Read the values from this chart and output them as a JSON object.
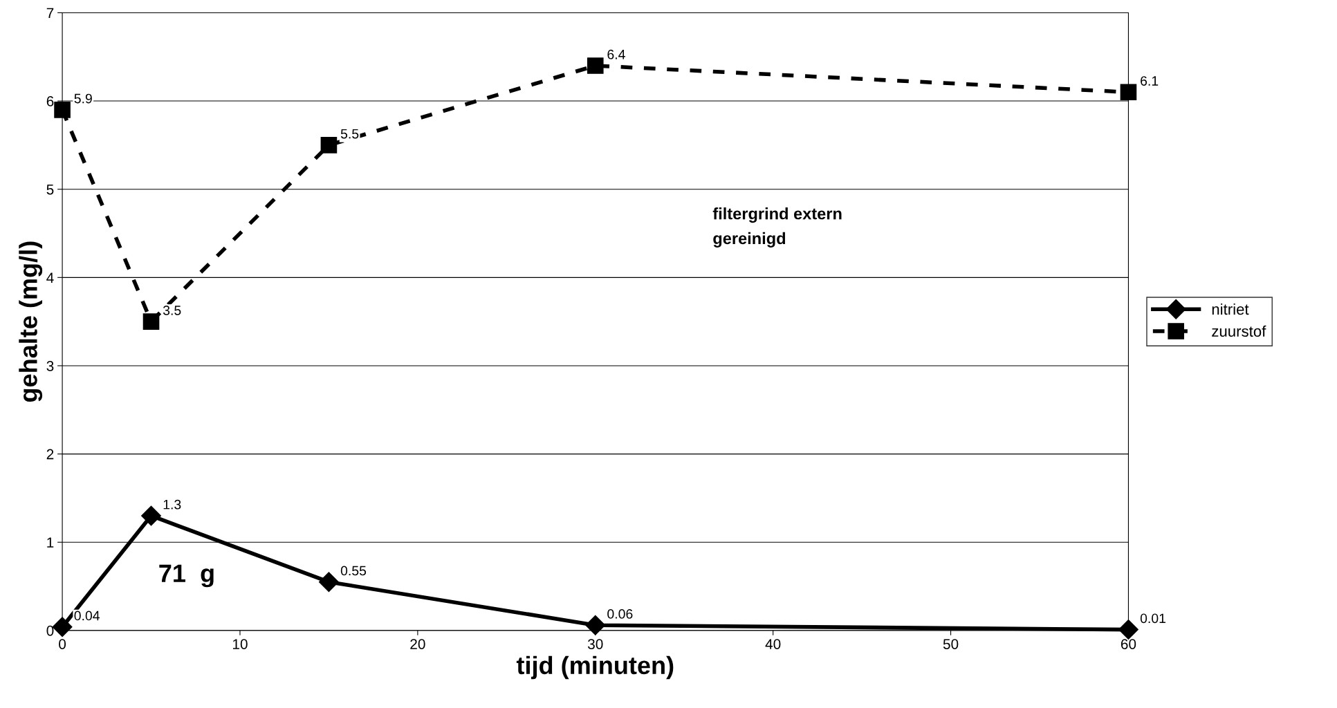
{
  "chart_data": {
    "type": "line",
    "xlabel": "tijd (minuten)",
    "ylabel": "gehalte (mg/l)",
    "x": [
      0,
      5,
      15,
      30,
      60
    ],
    "series": [
      {
        "name": "nitriet",
        "color": "#000000",
        "values": [
          0.04,
          1.3,
          0.55,
          0.06,
          0.01
        ],
        "marker": "diamond",
        "line_style": "solid"
      },
      {
        "name": "zuurstof",
        "color": "#000000",
        "values": [
          5.9,
          3.5,
          5.5,
          6.4,
          6.1
        ],
        "marker": "square",
        "line_style": "dashed"
      }
    ],
    "xlim": [
      0,
      60
    ],
    "xticks": [
      0,
      10,
      20,
      30,
      40,
      50,
      60
    ],
    "ylim": [
      0,
      7
    ],
    "yticks": [
      0,
      1,
      2,
      3,
      4,
      5,
      6,
      7
    ],
    "grid": "y",
    "legend": "right",
    "data_labels": true,
    "annotations": [
      "filtergrind extern\ngereinigd",
      "71  g"
    ]
  }
}
